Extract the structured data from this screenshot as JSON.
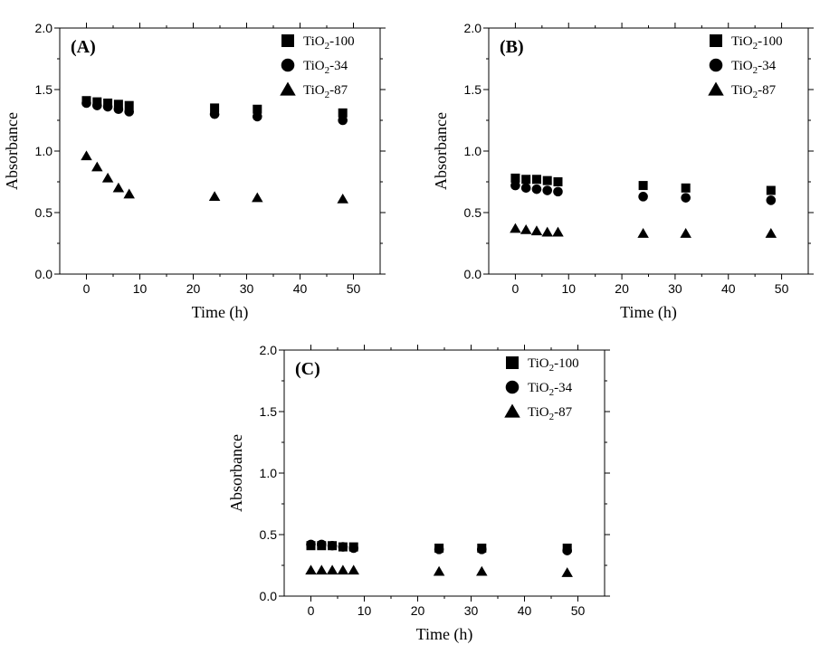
{
  "chart_data": [
    {
      "type": "scatter",
      "panel_label": "(A)",
      "xlabel": "Time (h)",
      "ylabel": "Absorbance",
      "xlim": [
        -5,
        55
      ],
      "ylim": [
        0,
        2.0
      ],
      "xticks": [
        "0",
        "10",
        "20",
        "30",
        "40",
        "50"
      ],
      "yticks": [
        "0.0",
        "0.5",
        "1.0",
        "1.5",
        "2.0"
      ],
      "x": [
        0,
        2,
        4,
        6,
        8,
        24,
        32,
        48
      ],
      "series": [
        {
          "name": "TiO2-100",
          "marker": "square",
          "values": [
            1.41,
            1.4,
            1.39,
            1.38,
            1.37,
            1.35,
            1.34,
            1.31
          ]
        },
        {
          "name": "TiO2-34",
          "marker": "circle",
          "values": [
            1.39,
            1.37,
            1.36,
            1.34,
            1.32,
            1.3,
            1.28,
            1.25
          ]
        },
        {
          "name": "TiO2-87",
          "marker": "triangle",
          "values": [
            0.96,
            0.87,
            0.78,
            0.7,
            0.65,
            0.63,
            0.62,
            0.61
          ]
        }
      ],
      "legend": "top-right",
      "grid": false
    },
    {
      "type": "scatter",
      "panel_label": "(B)",
      "xlabel": "Time (h)",
      "ylabel": "Absorbance",
      "xlim": [
        -5,
        55
      ],
      "ylim": [
        0,
        2.0
      ],
      "xticks": [
        "0",
        "10",
        "20",
        "30",
        "40",
        "50"
      ],
      "yticks": [
        "0.0",
        "0.5",
        "1.0",
        "1.5",
        "2.0"
      ],
      "x": [
        0,
        2,
        4,
        6,
        8,
        24,
        32,
        48
      ],
      "series": [
        {
          "name": "TiO2-100",
          "marker": "square",
          "values": [
            0.78,
            0.77,
            0.77,
            0.76,
            0.75,
            0.72,
            0.7,
            0.68
          ]
        },
        {
          "name": "TiO2-34",
          "marker": "circle",
          "values": [
            0.72,
            0.7,
            0.69,
            0.68,
            0.67,
            0.63,
            0.62,
            0.6
          ]
        },
        {
          "name": "TiO2-87",
          "marker": "triangle",
          "values": [
            0.37,
            0.36,
            0.35,
            0.34,
            0.34,
            0.33,
            0.33,
            0.33
          ]
        }
      ],
      "legend": "top-right",
      "grid": false
    },
    {
      "type": "scatter",
      "panel_label": "(C)",
      "xlabel": "Time (h)",
      "ylabel": "Absorbance",
      "xlim": [
        -5,
        55
      ],
      "ylim": [
        0,
        2.0
      ],
      "xticks": [
        "0",
        "10",
        "20",
        "30",
        "40",
        "50"
      ],
      "yticks": [
        "0.0",
        "0.5",
        "1.0",
        "1.5",
        "2.0"
      ],
      "x": [
        0,
        2,
        4,
        6,
        8,
        24,
        32,
        48
      ],
      "series": [
        {
          "name": "TiO2-100",
          "marker": "square",
          "values": [
            0.41,
            0.41,
            0.41,
            0.4,
            0.4,
            0.39,
            0.39,
            0.39
          ]
        },
        {
          "name": "TiO2-34",
          "marker": "circle",
          "values": [
            0.42,
            0.42,
            0.41,
            0.4,
            0.39,
            0.38,
            0.38,
            0.37
          ]
        },
        {
          "name": "TiO2-87",
          "marker": "triangle",
          "values": [
            0.21,
            0.21,
            0.21,
            0.21,
            0.21,
            0.2,
            0.2,
            0.19
          ]
        }
      ],
      "legend": "top-right",
      "grid": false
    }
  ]
}
